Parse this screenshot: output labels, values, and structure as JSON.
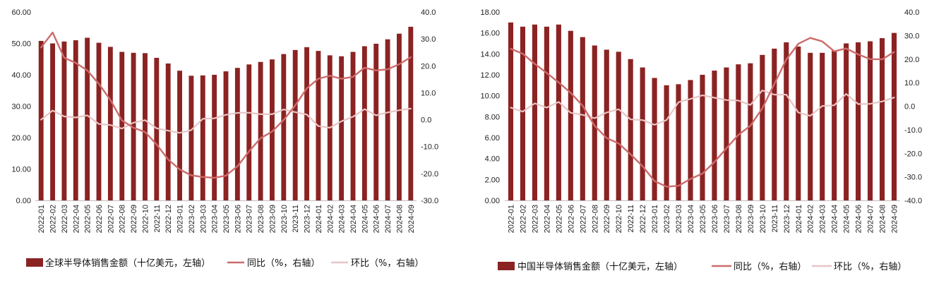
{
  "colors": {
    "bar": "#8b2323",
    "yoy": "#cd6b6b",
    "mom": "#e8c4c4"
  },
  "chart_data": [
    {
      "type": "bar",
      "categories": [
        "2022-01",
        "2022-02",
        "2022-03",
        "2022-04",
        "2022-05",
        "2022-06",
        "2022-07",
        "2022-08",
        "2022-09",
        "2022-10",
        "2022-11",
        "2022-12",
        "2023-01",
        "2023-02",
        "2023-03",
        "2023-04",
        "2023-05",
        "2023-06",
        "2023-07",
        "2023-08",
        "2023-09",
        "2023-10",
        "2023-11",
        "2023-12",
        "2024-01",
        "2024-02",
        "2024-03",
        "2024-04",
        "2024-05",
        "2024-06",
        "2024-07",
        "2024-08",
        "2024-09"
      ],
      "series": [
        {
          "name": "全球半导体销售金额（十亿美元，左轴）",
          "type": "bar",
          "axis": "left",
          "values": [
            50.8,
            50.0,
            50.6,
            51.0,
            51.8,
            50.2,
            48.9,
            47.3,
            47.0,
            46.9,
            45.4,
            43.6,
            41.3,
            39.7,
            39.8,
            40.0,
            41.1,
            42.2,
            43.3,
            44.1,
            44.9,
            46.6,
            47.9,
            48.8,
            47.6,
            46.2,
            45.9,
            47.3,
            49.1,
            49.9,
            51.3,
            53.1,
            55.3
          ]
        },
        {
          "name": "同比（%，右轴）",
          "type": "line",
          "axis": "right",
          "values": [
            26.8,
            32.4,
            23.0,
            21.1,
            18.3,
            13.3,
            7.3,
            -0.3,
            -3.0,
            -4.6,
            -9.2,
            -14.8,
            -18.5,
            -20.7,
            -21.3,
            -21.6,
            -20.8,
            -17.3,
            -11.8,
            -6.9,
            -4.4,
            -0.1,
            5.3,
            11.6,
            15.2,
            16.3,
            15.2,
            15.9,
            19.3,
            18.3,
            18.7,
            20.6,
            23.2
          ]
        },
        {
          "name": "环比（%，右轴）",
          "type": "line",
          "axis": "right",
          "values": [
            0.0,
            3.4,
            1.2,
            0.8,
            1.6,
            -1.6,
            -2.0,
            -3.3,
            -1.1,
            -0.2,
            -3.2,
            -4.1,
            -4.9,
            -3.9,
            0.3,
            0.5,
            1.8,
            2.5,
            2.6,
            2.0,
            2.0,
            3.8,
            2.8,
            1.9,
            -2.4,
            -3.0,
            -0.6,
            1.1,
            3.9,
            1.6,
            2.7,
            3.5,
            4.1
          ]
        }
      ],
      "ylim_left": [
        0,
        60
      ],
      "ylim_right": [
        -30,
        40
      ],
      "yticks_left": [
        "0.00",
        "10.00",
        "20.00",
        "30.00",
        "40.00",
        "50.00",
        "60.00"
      ],
      "yticks_right": [
        "-30.0",
        "-20.0",
        "-10.0",
        "0.0",
        "10.0",
        "20.0",
        "30.0",
        "40.0"
      ],
      "legend_position": "bottom"
    },
    {
      "type": "bar",
      "categories": [
        "2022-01",
        "2022-02",
        "2022-03",
        "2022-04",
        "2022-05",
        "2022-06",
        "2022-07",
        "2022-08",
        "2022-09",
        "2022-10",
        "2022-11",
        "2022-12",
        "2023-01",
        "2023-02",
        "2023-03",
        "2023-04",
        "2023-05",
        "2023-06",
        "2023-07",
        "2023-08",
        "2023-09",
        "2023-10",
        "2023-11",
        "2023-12",
        "2024-01",
        "2024-02",
        "2024-03",
        "2024-04",
        "2024-05",
        "2024-06",
        "2024-07",
        "2024-08",
        "2024-09"
      ],
      "series": [
        {
          "name": "中国半导体销售金额（十亿美元，左轴）",
          "type": "bar",
          "axis": "left",
          "values": [
            17.0,
            16.6,
            16.8,
            16.6,
            16.8,
            16.2,
            15.6,
            14.8,
            14.4,
            14.2,
            13.5,
            12.7,
            11.7,
            11.0,
            11.1,
            11.5,
            12.0,
            12.4,
            12.7,
            13.0,
            13.1,
            13.9,
            14.5,
            15.1,
            14.7,
            14.1,
            14.1,
            14.3,
            15.0,
            15.1,
            15.2,
            15.5,
            16.0
          ]
        },
        {
          "name": "同比（%，右轴）",
          "type": "line",
          "axis": "right",
          "values": [
            24.4,
            22.3,
            18.0,
            14.1,
            10.1,
            5.7,
            0.2,
            -8.3,
            -13.5,
            -15.8,
            -20.4,
            -25.5,
            -31.8,
            -34.2,
            -33.8,
            -30.9,
            -28.6,
            -23.7,
            -17.9,
            -12.2,
            -8.3,
            -0.9,
            9.4,
            19.8,
            26.5,
            29.0,
            27.5,
            23.3,
            24.5,
            22.0,
            20.0,
            19.9,
            23.0
          ]
        },
        {
          "name": "环比（%，右轴）",
          "type": "line",
          "axis": "right",
          "values": [
            -0.6,
            -2.3,
            1.2,
            -0.6,
            1.8,
            -2.8,
            -3.7,
            -5.1,
            -2.7,
            -1.3,
            -5.6,
            -5.9,
            -7.9,
            -5.9,
            1.7,
            3.1,
            4.6,
            3.6,
            2.6,
            2.4,
            0.5,
            6.7,
            4.9,
            4.9,
            -2.7,
            -4.1,
            0.1,
            0.4,
            5.2,
            0.9,
            1.0,
            2.0,
            3.7
          ]
        }
      ],
      "ylim_left": [
        0,
        18
      ],
      "ylim_right": [
        -40,
        40
      ],
      "yticks_left": [
        "0.00",
        "2.00",
        "4.00",
        "6.00",
        "8.00",
        "10.00",
        "12.00",
        "14.00",
        "16.00",
        "18.00"
      ],
      "yticks_right": [
        "-40.0",
        "-30.0",
        "-20.0",
        "-10.0",
        "0.0",
        "10.0",
        "20.0",
        "30.0",
        "40.0"
      ],
      "legend_position": "bottom"
    }
  ]
}
